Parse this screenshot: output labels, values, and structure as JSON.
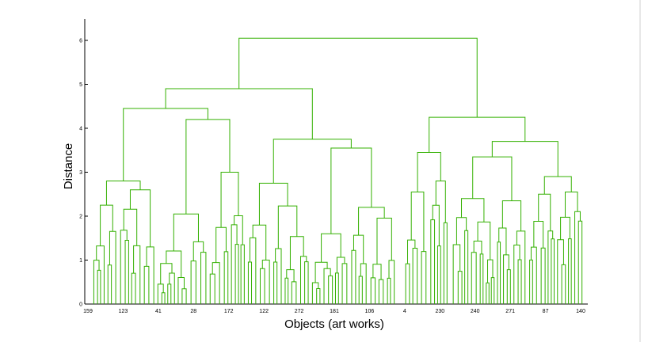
{
  "chart_data": {
    "type": "dendrogram",
    "title": "",
    "xlabel": "Objects (art works)",
    "ylabel": "Distance",
    "ylim": [
      0,
      6.3
    ],
    "yticks": [
      "0",
      "1",
      "2",
      "3",
      "4",
      "5",
      "6"
    ],
    "xticks": [
      "159",
      "123",
      "41",
      "28",
      "172",
      "122",
      "272",
      "181",
      "106",
      "4",
      "230",
      "240",
      "271",
      "87",
      "140"
    ],
    "link_color": "#33b000",
    "grid": false,
    "merge_heights": {
      "root": 6.05,
      "left_group": 4.9,
      "left_left": 4.45,
      "left_mid": 4.2,
      "left_right": 3.75,
      "right_group": 4.25,
      "right_right": 3.7,
      "right_right_left": 3.35,
      "right_left": 3.45
    }
  }
}
